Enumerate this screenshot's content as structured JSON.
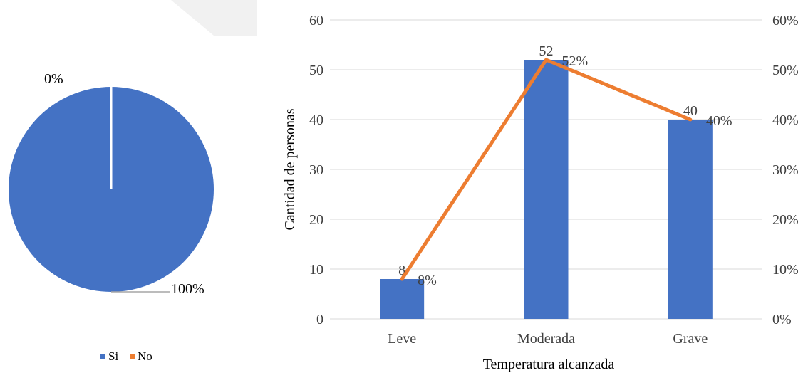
{
  "colors": {
    "si": "#4472C4",
    "no": "#ED7D31",
    "bar": "#4472C4",
    "line": "#ED7D31",
    "grid": "#D9D9D9",
    "text": "#404040"
  },
  "chart_data": [
    {
      "type": "pie",
      "categories": [
        "Si",
        "No"
      ],
      "values": [
        100,
        0
      ],
      "data_labels": [
        "100%",
        "0%"
      ],
      "legend": [
        "Si",
        "No"
      ],
      "legend_position": "bottom"
    },
    {
      "type": "bar",
      "categories": [
        "Leve",
        "Moderada",
        "Grave"
      ],
      "series": [
        {
          "type": "bar",
          "values": [
            8,
            52,
            40
          ],
          "labels": [
            "8",
            "52",
            "40"
          ],
          "axis": "left"
        },
        {
          "type": "line",
          "values": [
            8,
            52,
            40
          ],
          "labels": [
            "8%",
            "52%",
            "40%"
          ],
          "axis": "right"
        }
      ],
      "xlabel": "Temperatura alcanzada",
      "ylabel": "Cantidad de personas",
      "ylim": [
        0,
        60
      ],
      "yticks": [
        "0",
        "10",
        "20",
        "30",
        "40",
        "50",
        "60"
      ],
      "y2lim": [
        0,
        60
      ],
      "y2ticks": [
        "0%",
        "10%",
        "20%",
        "30%",
        "40%",
        "50%",
        "60%"
      ],
      "grid": true
    }
  ]
}
